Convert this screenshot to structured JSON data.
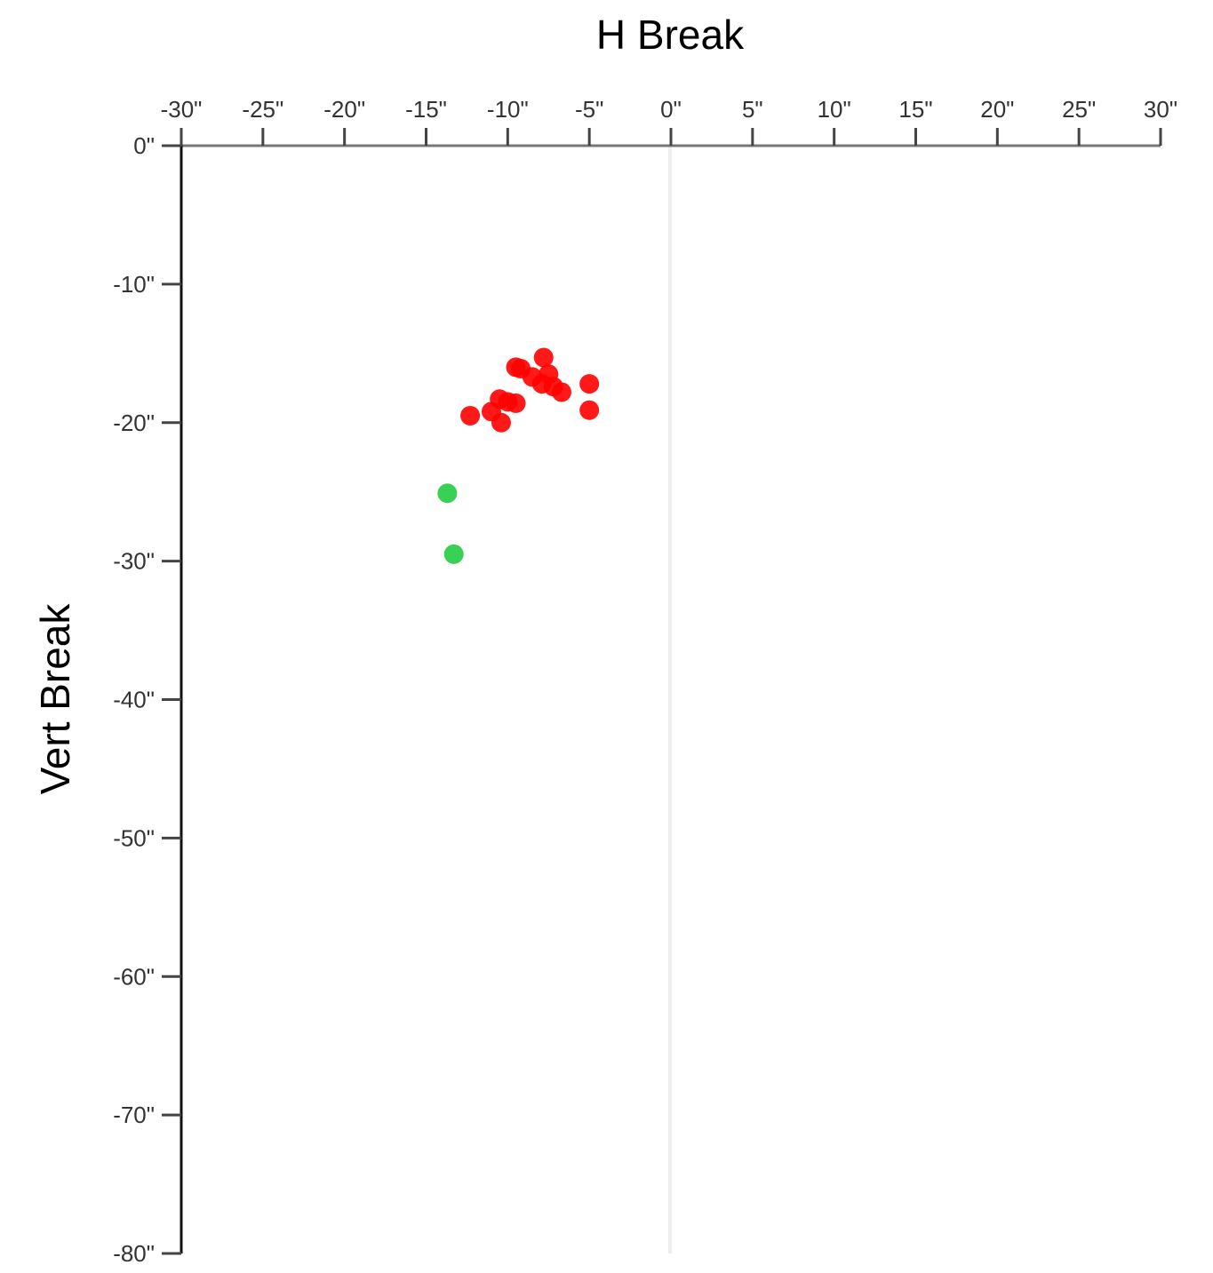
{
  "chart_data": {
    "type": "scatter",
    "title": "",
    "xlabel": "H Break",
    "ylabel": "Vert Break",
    "xlim": [
      -30,
      30
    ],
    "ylim": [
      -80,
      0
    ],
    "x_ticks": [
      "-30\"",
      "-25\"",
      "-20\"",
      "-15\"",
      "-10\"",
      "-5\"",
      "0\"",
      "5\"",
      "10\"",
      "15\"",
      "20\"",
      "25\"",
      "30\""
    ],
    "x_tick_values": [
      -30,
      -25,
      -20,
      -15,
      -10,
      -5,
      0,
      5,
      10,
      15,
      20,
      25,
      30
    ],
    "y_ticks": [
      "0\"",
      "-10\"",
      "-20\"",
      "-30\"",
      "-40\"",
      "-50\"",
      "-60\"",
      "-70\"",
      "-80\""
    ],
    "y_tick_values": [
      0,
      -10,
      -20,
      -30,
      -40,
      -50,
      -60,
      -70,
      -80
    ],
    "x_axis_position": "top",
    "zero_line": true,
    "grid": false,
    "series": [
      {
        "color": "#ff0000",
        "points": [
          [
            -7.8,
            -15.3
          ],
          [
            -9.5,
            -16.0
          ],
          [
            -9.2,
            -16.1
          ],
          [
            -8.5,
            -16.7
          ],
          [
            -7.5,
            -16.5
          ],
          [
            -7.9,
            -17.2
          ],
          [
            -7.2,
            -17.4
          ],
          [
            -6.7,
            -17.8
          ],
          [
            -5.0,
            -17.2
          ],
          [
            -5.0,
            -19.1
          ],
          [
            -10.5,
            -18.3
          ],
          [
            -10.0,
            -18.5
          ],
          [
            -9.5,
            -18.6
          ],
          [
            -11.0,
            -19.2
          ],
          [
            -12.3,
            -19.5
          ],
          [
            -10.4,
            -20.0
          ]
        ]
      },
      {
        "color": "#22cc44",
        "points": [
          [
            -13.7,
            -25.1
          ],
          [
            -13.3,
            -29.5
          ]
        ]
      }
    ]
  }
}
